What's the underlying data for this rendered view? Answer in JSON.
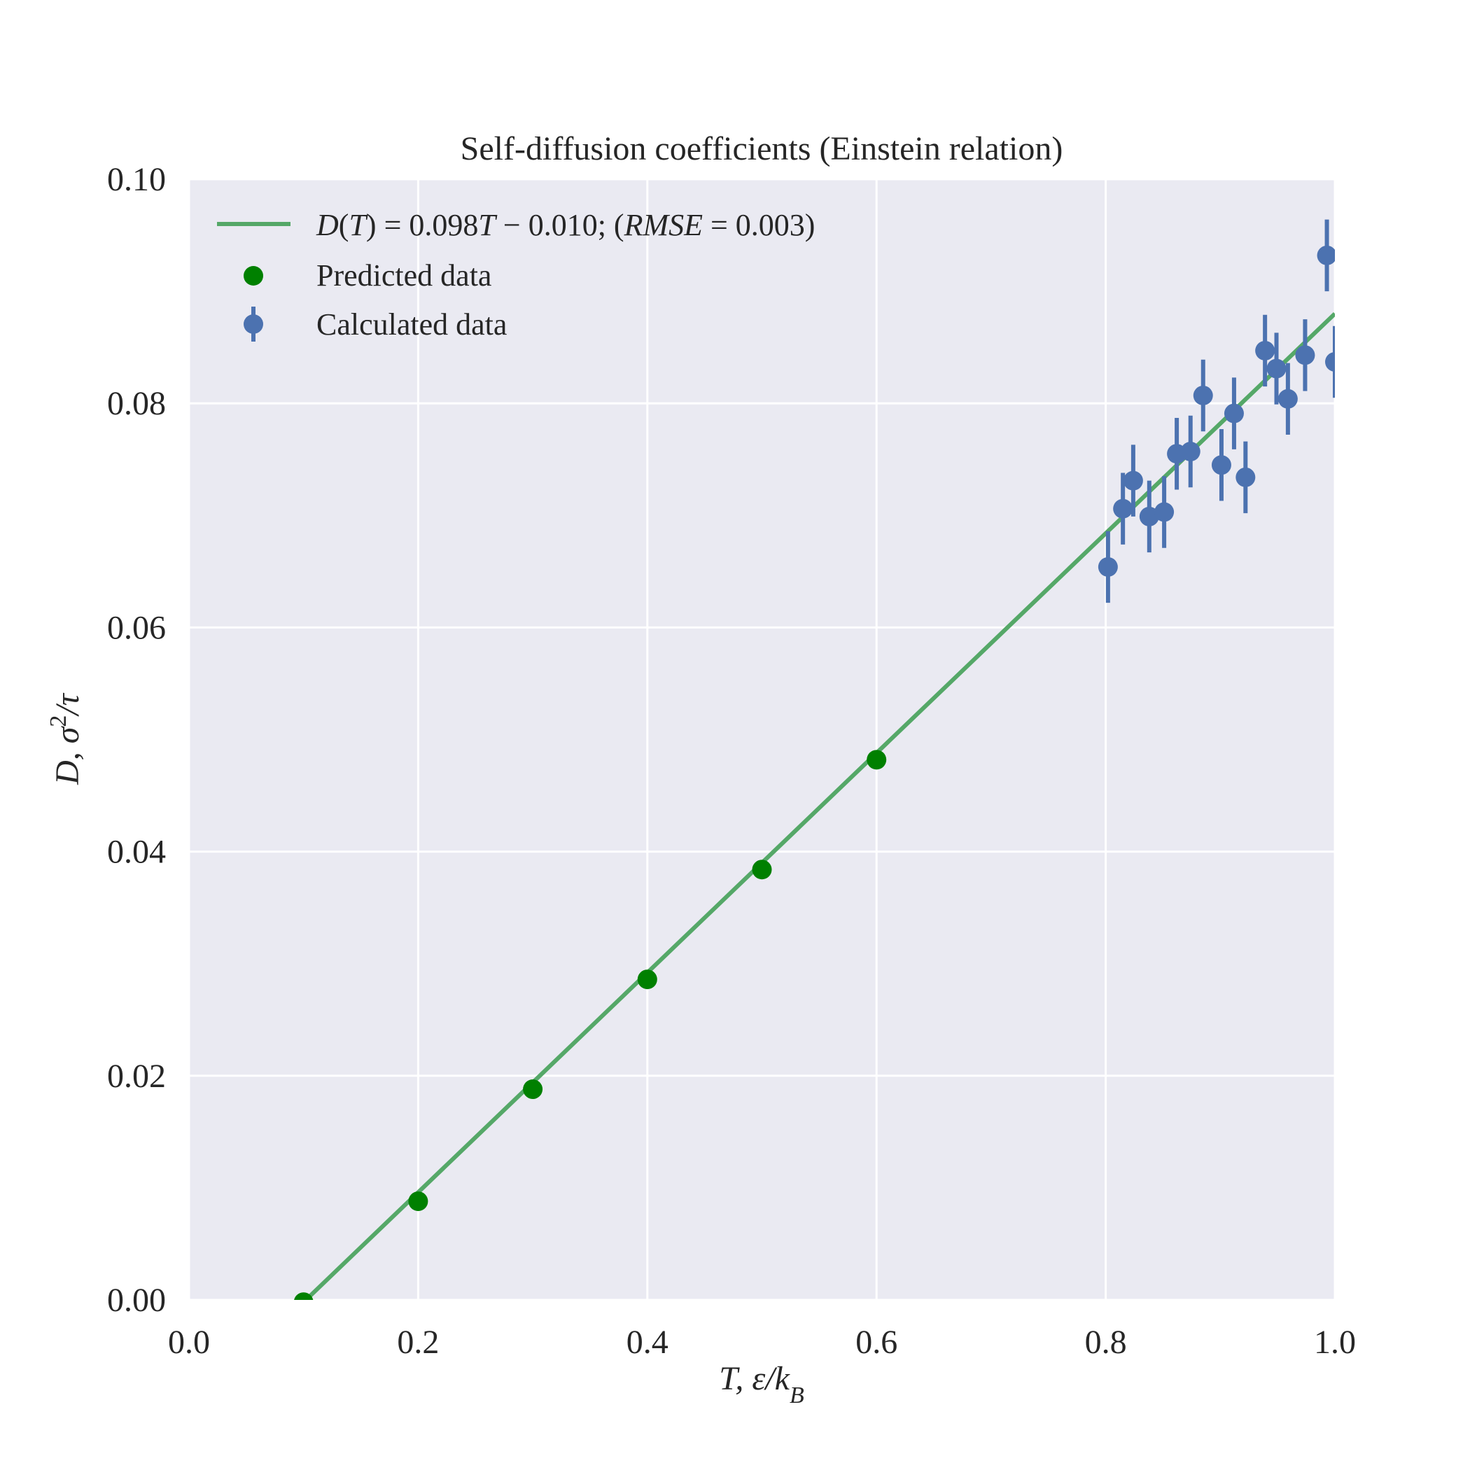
{
  "chart_data": {
    "type": "scatter",
    "title": "Self-diffusion coefficients (Einstein relation)",
    "xlabel": "T, ε/k_B",
    "ylabel": "D, σ²/τ",
    "xlim": [
      0.0,
      1.0
    ],
    "ylim": [
      0.0,
      0.1
    ],
    "xticks": [
      "0.0",
      "0.2",
      "0.4",
      "0.6",
      "0.8",
      "1.0"
    ],
    "yticks": [
      "0.00",
      "0.02",
      "0.04",
      "0.06",
      "0.08",
      "0.10"
    ],
    "grid": true,
    "legend_position": "top-left",
    "colors": {
      "fit_line": "#55a868",
      "predicted": "#008000",
      "calculated": "#4c72b0",
      "plot_background": "#eaeaf2",
      "grid": "#ffffff"
    },
    "fit_line": {
      "slope": 0.098,
      "intercept": -0.01,
      "legend_label": "D(T) = 0.098T − 0.010; (RMSE = 0.003)"
    },
    "predicted": {
      "name": "Predicted data",
      "x": [
        0.1,
        0.2,
        0.3,
        0.4,
        0.5,
        0.6
      ],
      "y": [
        -0.0002,
        0.0088,
        0.0188,
        0.0286,
        0.0384,
        0.0482
      ]
    },
    "calculated": {
      "name": "Calculated data",
      "x": [
        0.802,
        0.815,
        0.824,
        0.838,
        0.851,
        0.862,
        0.874,
        0.885,
        0.901,
        0.912,
        0.922,
        0.939,
        0.949,
        0.959,
        0.974,
        0.993,
        1.0
      ],
      "y": [
        0.0654,
        0.0706,
        0.0731,
        0.0699,
        0.0703,
        0.0755,
        0.0757,
        0.0807,
        0.0745,
        0.0791,
        0.0734,
        0.0847,
        0.0831,
        0.0804,
        0.0843,
        0.0932,
        0.0837
      ],
      "err": [
        0.0032,
        0.0032,
        0.0032,
        0.0032,
        0.0032,
        0.0032,
        0.0032,
        0.0032,
        0.0032,
        0.0032,
        0.0032,
        0.0032,
        0.0032,
        0.0032,
        0.0032,
        0.0032,
        0.0032
      ]
    }
  }
}
